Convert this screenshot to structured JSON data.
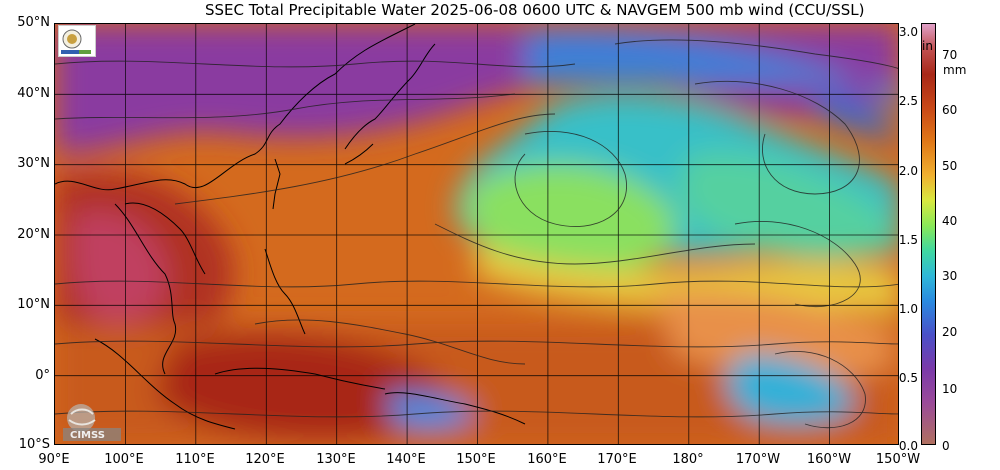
{
  "title": "SSEC Total Precipitable Water  2025-06-08 0600 UTC & NAVGEM 500 mb wind (CCU/SSL)",
  "lat_labels": [
    "50°N",
    "40°N",
    "30°N",
    "20°N",
    "10°N",
    "0°",
    "10°S"
  ],
  "lon_labels": [
    "90°E",
    "100°E",
    "110°E",
    "120°E",
    "130°E",
    "140°E",
    "150°E",
    "160°E",
    "170°E",
    "180°",
    "170°W",
    "160°W",
    "150°W"
  ],
  "colorbar": {
    "inch_unit": "in",
    "mm_unit": "mm",
    "inch_ticks": [
      "3.0",
      "2.5",
      "2.0",
      "1.5",
      "1.0",
      "0.5",
      "0.0"
    ],
    "mm_ticks": [
      "70",
      "60",
      "50",
      "40",
      "30",
      "20",
      "10",
      "0"
    ]
  },
  "logos": {
    "cimss": "CIMSS"
  },
  "colors": {
    "dry": "#8a3aa0",
    "moderate": "#30a8e0",
    "moist": "#e07818",
    "very_moist": "#a82818",
    "coast": "#000000",
    "streamline": "#202020"
  }
}
